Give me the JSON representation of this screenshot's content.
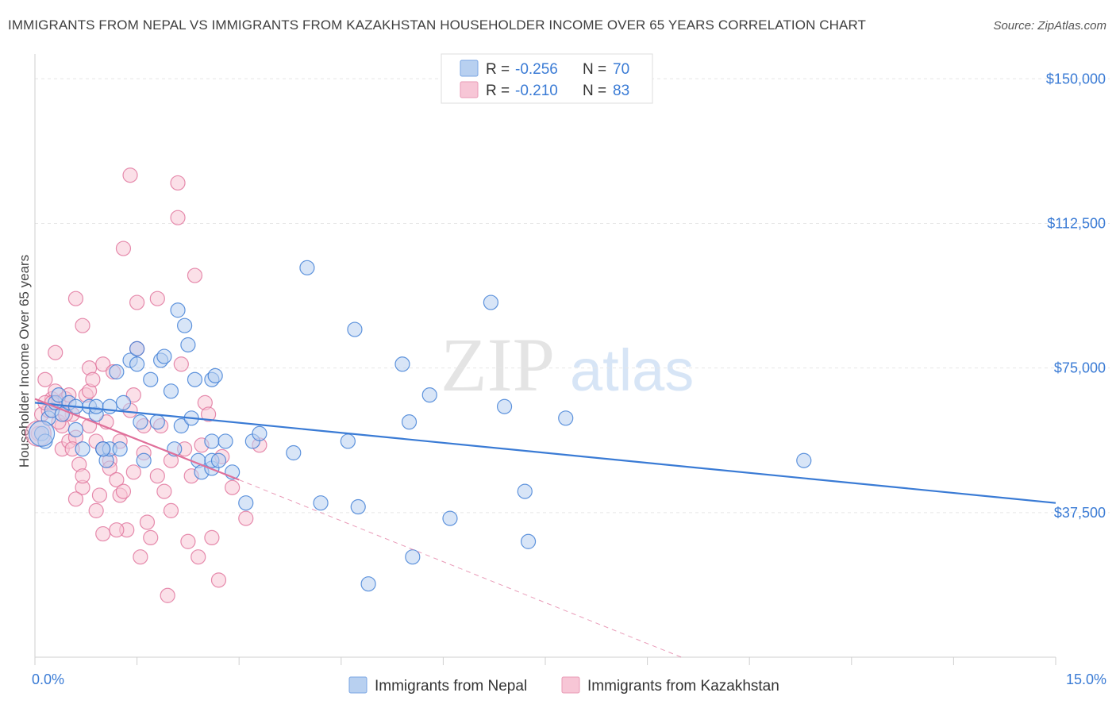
{
  "title": "IMMIGRANTS FROM NEPAL VS IMMIGRANTS FROM KAZAKHSTAN HOUSEHOLDER INCOME OVER 65 YEARS CORRELATION CHART",
  "source": "Source: ZipAtlas.com",
  "watermark": {
    "zip": "ZIP",
    "atlas": "atlas"
  },
  "colors": {
    "nepal": "#3a7bd5",
    "kazakhstan": "#e0709a",
    "nepal_fill": "#b8d0f0",
    "kazakhstan_fill": "#f7c6d6"
  },
  "legend": [
    {
      "r_label": "R = ",
      "r_value": "-0.256",
      "n_label": "N = ",
      "n_value": "70"
    },
    {
      "r_label": "R = ",
      "r_value": "-0.210",
      "n_label": "N = ",
      "n_value": "83"
    }
  ],
  "chart_data": {
    "type": "scatter",
    "title": "IMMIGRANTS FROM NEPAL VS IMMIGRANTS FROM KAZAKHSTAN HOUSEHOLDER INCOME OVER 65 YEARS CORRELATION CHART",
    "xlabel": "",
    "ylabel": "Householder Income Over 65 years",
    "xlim": [
      0,
      15
    ],
    "ylim": [
      0,
      155000
    ],
    "x_tick_labels": [
      "0.0%",
      "15.0%"
    ],
    "y_ticks": [
      37500,
      75000,
      112500,
      150000
    ],
    "y_tick_labels": [
      "$37,500",
      "$75,000",
      "$112,500",
      "$150,000"
    ],
    "series": [
      {
        "name": "Immigrants from Nepal",
        "points": [
          [
            0.1,
            58000
          ],
          [
            0.15,
            56000
          ],
          [
            0.2,
            62000
          ],
          [
            0.25,
            64000
          ],
          [
            0.3,
            66000
          ],
          [
            0.35,
            68000
          ],
          [
            0.4,
            63000
          ],
          [
            0.5,
            66000
          ],
          [
            0.6,
            59000
          ],
          [
            0.7,
            54000
          ],
          [
            0.8,
            65000
          ],
          [
            0.9,
            63000
          ],
          [
            1.0,
            54000
          ],
          [
            1.05,
            51000
          ],
          [
            1.1,
            54000
          ],
          [
            1.2,
            74000
          ],
          [
            1.25,
            54000
          ],
          [
            1.3,
            66000
          ],
          [
            1.4,
            77000
          ],
          [
            1.5,
            76000
          ],
          [
            1.5,
            80000
          ],
          [
            1.55,
            61000
          ],
          [
            1.6,
            51000
          ],
          [
            1.7,
            72000
          ],
          [
            1.8,
            61000
          ],
          [
            1.85,
            77000
          ],
          [
            1.9,
            78000
          ],
          [
            2.0,
            69000
          ],
          [
            2.05,
            54000
          ],
          [
            2.1,
            90000
          ],
          [
            2.15,
            60000
          ],
          [
            2.2,
            86000
          ],
          [
            2.25,
            81000
          ],
          [
            2.3,
            62000
          ],
          [
            2.35,
            72000
          ],
          [
            2.4,
            51000
          ],
          [
            2.45,
            48000
          ],
          [
            2.6,
            49000
          ],
          [
            2.6,
            56000
          ],
          [
            2.6,
            72000
          ],
          [
            2.65,
            73000
          ],
          [
            2.6,
            51000
          ],
          [
            2.7,
            51000
          ],
          [
            2.8,
            56000
          ],
          [
            2.9,
            48000
          ],
          [
            3.1,
            40000
          ],
          [
            3.2,
            56000
          ],
          [
            3.3,
            58000
          ],
          [
            3.8,
            53000
          ],
          [
            4.0,
            101000
          ],
          [
            4.2,
            40000
          ],
          [
            4.6,
            56000
          ],
          [
            4.7,
            85000
          ],
          [
            4.75,
            39000
          ],
          [
            4.9,
            19000
          ],
          [
            5.4,
            76000
          ],
          [
            5.5,
            61000
          ],
          [
            5.55,
            26000
          ],
          [
            5.8,
            68000
          ],
          [
            6.1,
            36000
          ],
          [
            6.7,
            92000
          ],
          [
            6.9,
            65000
          ],
          [
            7.2,
            43000
          ],
          [
            7.25,
            30000
          ],
          [
            7.8,
            62000
          ],
          [
            11.3,
            51000
          ],
          [
            0.6,
            65000
          ],
          [
            0.9,
            65000
          ],
          [
            1.1,
            65000
          ],
          [
            1.0,
            54000
          ]
        ],
        "trend": [
          [
            0.0,
            66000
          ],
          [
            15.0,
            40000
          ]
        ]
      },
      {
        "name": "Immigrants from Kazakhstan",
        "points": [
          [
            0.05,
            58000
          ],
          [
            0.1,
            63000
          ],
          [
            0.15,
            72000
          ],
          [
            0.2,
            64000
          ],
          [
            0.25,
            67000
          ],
          [
            0.3,
            69000
          ],
          [
            0.3,
            79000
          ],
          [
            0.35,
            66000
          ],
          [
            0.4,
            60000
          ],
          [
            0.4,
            54000
          ],
          [
            0.45,
            67000
          ],
          [
            0.5,
            68000
          ],
          [
            0.5,
            56000
          ],
          [
            0.55,
            63000
          ],
          [
            0.6,
            57000
          ],
          [
            0.6,
            93000
          ],
          [
            0.65,
            50000
          ],
          [
            0.7,
            44000
          ],
          [
            0.7,
            86000
          ],
          [
            0.75,
            68000
          ],
          [
            0.8,
            75000
          ],
          [
            0.8,
            69000
          ],
          [
            0.85,
            72000
          ],
          [
            0.9,
            56000
          ],
          [
            0.9,
            38000
          ],
          [
            0.95,
            42000
          ],
          [
            1.0,
            76000
          ],
          [
            1.0,
            54000
          ],
          [
            1.05,
            61000
          ],
          [
            1.1,
            51000
          ],
          [
            1.1,
            49000
          ],
          [
            1.15,
            74000
          ],
          [
            1.2,
            46000
          ],
          [
            1.25,
            42000
          ],
          [
            1.3,
            106000
          ],
          [
            1.3,
            43000
          ],
          [
            1.35,
            33000
          ],
          [
            1.4,
            125000
          ],
          [
            1.4,
            64000
          ],
          [
            1.45,
            68000
          ],
          [
            1.5,
            80000
          ],
          [
            1.5,
            92000
          ],
          [
            1.55,
            26000
          ],
          [
            1.6,
            53000
          ],
          [
            1.6,
            60000
          ],
          [
            1.65,
            35000
          ],
          [
            1.7,
            31000
          ],
          [
            1.8,
            93000
          ],
          [
            1.8,
            47000
          ],
          [
            1.85,
            60000
          ],
          [
            1.9,
            43000
          ],
          [
            1.95,
            16000
          ],
          [
            2.0,
            51000
          ],
          [
            2.0,
            38000
          ],
          [
            2.1,
            114000
          ],
          [
            2.1,
            123000
          ],
          [
            2.15,
            76000
          ],
          [
            2.2,
            54000
          ],
          [
            2.25,
            30000
          ],
          [
            2.3,
            47000
          ],
          [
            2.35,
            99000
          ],
          [
            2.4,
            26000
          ],
          [
            2.45,
            55000
          ],
          [
            2.5,
            66000
          ],
          [
            2.55,
            63000
          ],
          [
            2.6,
            31000
          ],
          [
            2.7,
            20000
          ],
          [
            2.75,
            52000
          ],
          [
            2.9,
            44000
          ],
          [
            3.1,
            36000
          ],
          [
            3.3,
            55000
          ],
          [
            0.55,
            54000
          ],
          [
            0.35,
            61000
          ],
          [
            0.7,
            47000
          ],
          [
            1.0,
            32000
          ],
          [
            1.2,
            33000
          ],
          [
            0.15,
            66000
          ],
          [
            0.25,
            66000
          ],
          [
            0.45,
            63000
          ],
          [
            0.8,
            60000
          ],
          [
            1.25,
            56000
          ],
          [
            0.6,
            41000
          ],
          [
            1.45,
            48000
          ]
        ],
        "trend": [
          [
            0.0,
            67000
          ],
          [
            3.0,
            46000
          ]
        ],
        "trend_extension": [
          [
            3.0,
            46000
          ],
          [
            9.5,
            0
          ]
        ]
      }
    ]
  },
  "bottom_legend": [
    "Immigrants from Nepal",
    "Immigrants from Kazakhstan"
  ]
}
